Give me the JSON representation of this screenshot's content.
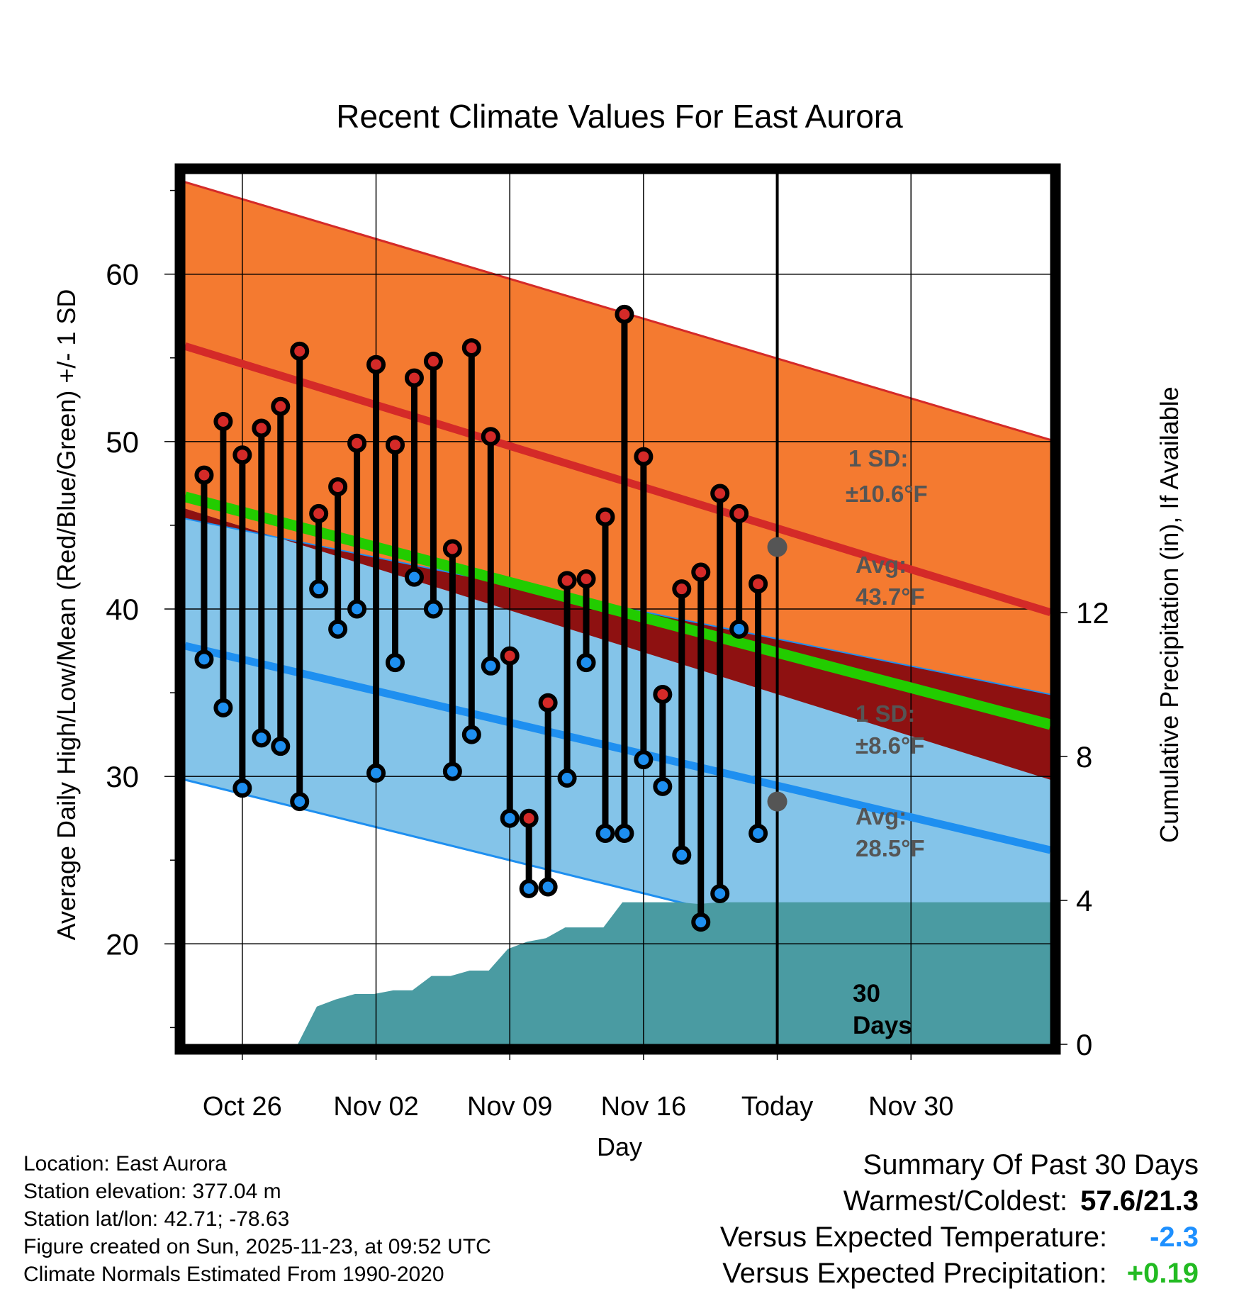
{
  "chart_data": {
    "type": "line",
    "title": "Recent Climate Values For East Aurora",
    "xlabel": "Day",
    "ylabel_left": "Average Daily High/Low/Mean (Red/Blue/Green) +/- 1 SD",
    "ylabel_right": "Cumulative Precipitation (in), If Available",
    "ylim_left": [
      14,
      66
    ],
    "ylim_right": [
      0,
      24.2
    ],
    "xlim_days": [
      0,
      45.3
    ],
    "left_ticks": [
      20,
      30,
      40,
      50,
      60
    ],
    "right_ticks": [
      0,
      4,
      8,
      12
    ],
    "x_ticks": [
      {
        "day": 3,
        "label": "Oct 26"
      },
      {
        "day": 10,
        "label": "Nov 02"
      },
      {
        "day": 17,
        "label": "Nov 09"
      },
      {
        "day": 24,
        "label": "Nov 16"
      },
      {
        "day": 31,
        "label": "Today"
      },
      {
        "day": 38,
        "label": "Nov 30"
      }
    ],
    "today_day": 31,
    "days_label": "30 Days",
    "normals": {
      "high_mean": [
        55.7,
        39.8
      ],
      "high_upper": [
        65.5,
        50.1
      ],
      "high_lower": [
        46.0,
        29.8
      ],
      "low_mean": [
        37.8,
        25.6
      ],
      "low_upper": [
        45.4,
        34.9
      ],
      "low_lower": [
        29.8,
        17.0
      ],
      "mean": [
        46.7,
        33.1
      ]
    },
    "today_avg_high": 43.7,
    "today_avg_low": 28.5,
    "annotations": {
      "high_sd": "1 SD:",
      "high_sd_val": "±10.6°F",
      "high_avg": "Avg:",
      "high_avg_val": "43.7°F",
      "low_sd": "1 SD:",
      "low_sd_val": "±8.6°F",
      "low_avg": "Avg:",
      "low_avg_val": "28.5°F"
    },
    "daily": {
      "days": [
        1,
        2,
        3,
        4,
        5,
        6,
        7,
        8,
        9,
        10,
        11,
        12,
        13,
        14,
        15,
        16,
        17,
        18,
        19,
        20,
        21,
        22,
        23,
        24,
        25,
        26,
        27,
        28,
        29,
        30
      ],
      "highs": [
        48.0,
        51.2,
        49.2,
        50.8,
        52.1,
        55.4,
        45.7,
        47.3,
        49.9,
        54.6,
        49.8,
        53.8,
        54.8,
        43.6,
        55.6,
        50.3,
        37.2,
        27.5,
        34.4,
        41.7,
        41.8,
        45.5,
        57.6,
        49.1,
        34.9,
        41.2,
        42.2,
        46.9,
        45.7,
        41.5
      ],
      "lows": [
        37.0,
        34.1,
        29.3,
        32.3,
        31.8,
        28.5,
        41.2,
        38.8,
        40.0,
        30.2,
        36.8,
        41.9,
        40.0,
        30.3,
        32.5,
        36.6,
        27.5,
        23.3,
        23.4,
        29.9,
        36.8,
        26.6,
        26.6,
        31.0,
        29.4,
        25.3,
        21.3,
        23.0,
        38.8,
        26.6
      ]
    },
    "precip_cumulative": {
      "days": [
        0,
        5.9,
        6.9,
        7.9,
        8.9,
        9.9,
        10.9,
        11.9,
        12.9,
        13.9,
        14.9,
        15.9,
        16.9,
        17.9,
        18.9,
        19.9,
        20.9,
        21.9,
        22.9,
        23.9,
        24.9,
        25.9,
        26.9,
        27.9,
        28.9,
        29.9,
        30.9,
        45.3
      ],
      "values": [
        0,
        0,
        1.05,
        1.25,
        1.4,
        1.4,
        1.5,
        1.5,
        1.9,
        1.9,
        2.05,
        2.05,
        2.65,
        2.85,
        2.95,
        3.25,
        3.25,
        3.25,
        3.95,
        3.95,
        3.95,
        3.95,
        3.9,
        3.95,
        3.95,
        3.95,
        3.95,
        3.95
      ]
    }
  },
  "footer": {
    "location": "Location: East Aurora",
    "elevation": "Station elevation: 377.04 m",
    "latlon": "Station lat/lon: 42.71; -78.63",
    "created": "Figure created on Sun, 2025-11-23, at 09:52 UTC",
    "normals": "Climate Normals Estimated From 1990-2020"
  },
  "summary": {
    "title": "Summary Of Past 30 Days",
    "warm_label": "Warmest/Coldest:",
    "warm_value": "57.6/21.3",
    "temp_label": "Versus Expected Temperature:",
    "temp_value": "-2.3",
    "precip_label": "Versus Expected Precipitation:",
    "precip_value": "+0.19"
  },
  "colors": {
    "high_band": "#f47a30",
    "high_line": "#d42a28",
    "low_band": "#84c4e9",
    "low_line": "#1e8ff0",
    "mean_line": "#22cc00",
    "overlap": "#8e1111",
    "precip": "#4a9ba2",
    "annotation": "#555555",
    "temp_dev": "#1e90ff",
    "precip_dev": "#22bb22"
  }
}
